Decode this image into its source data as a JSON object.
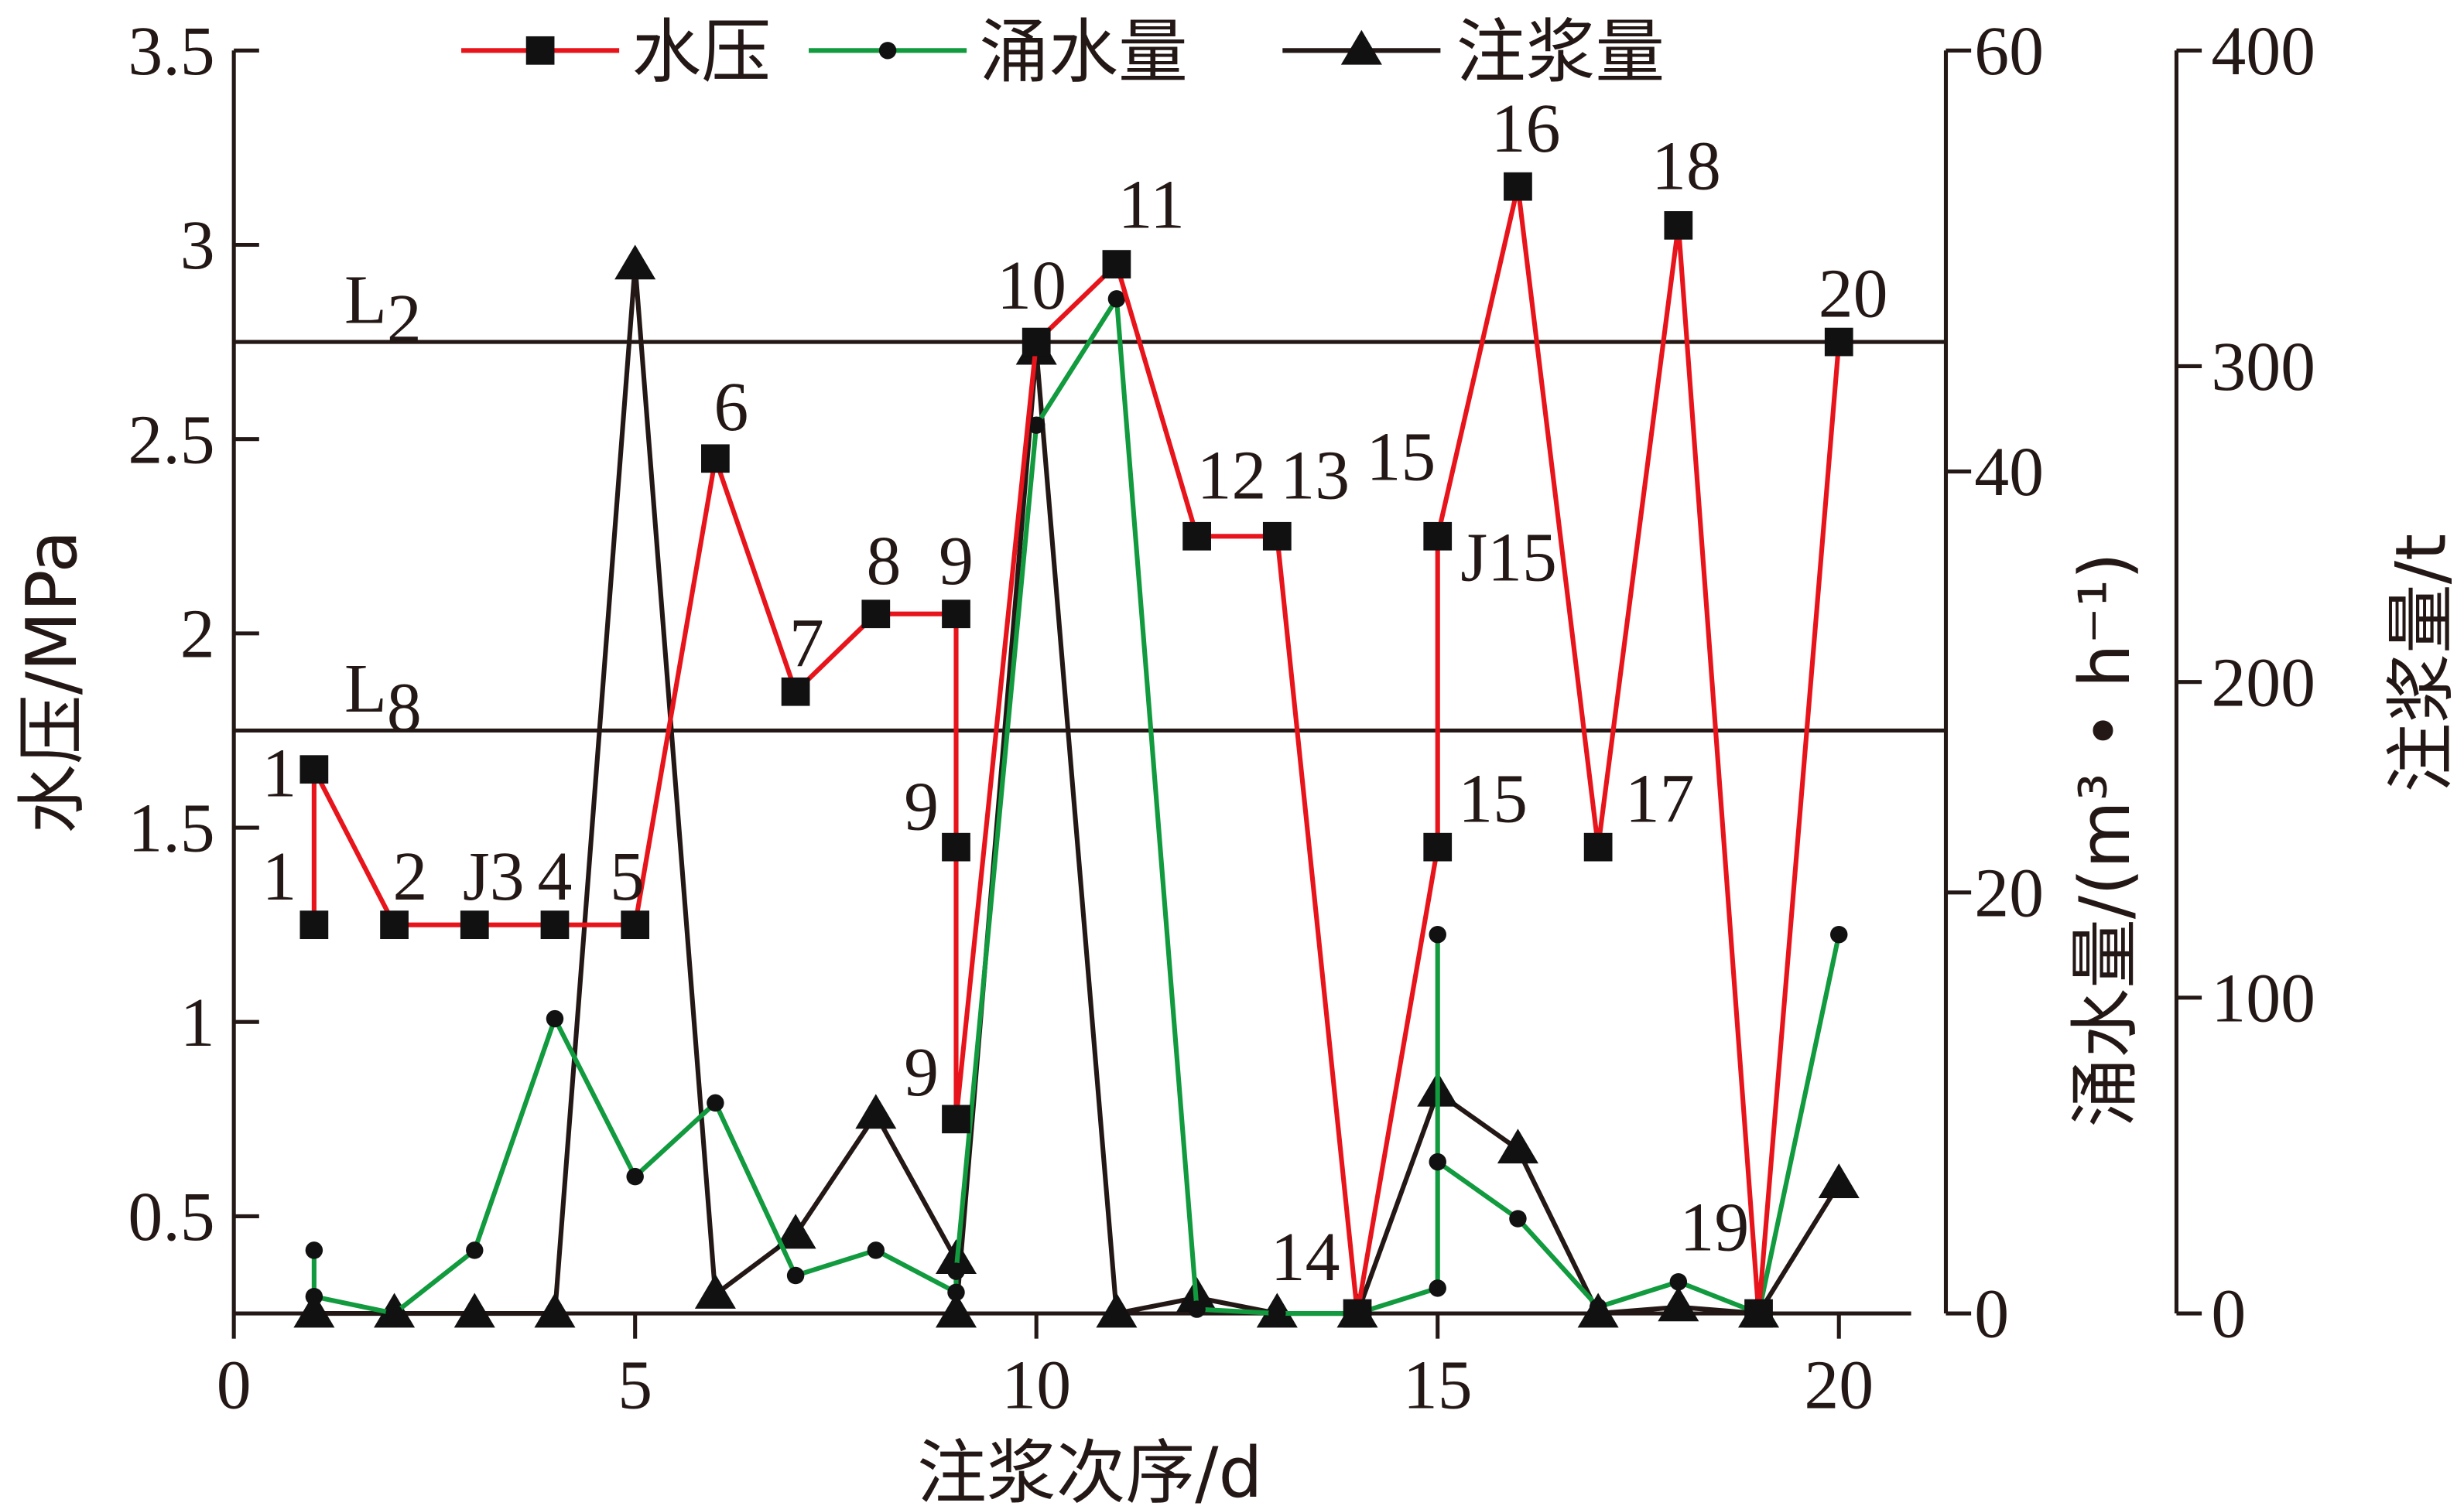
{
  "chart_data": {
    "type": "line",
    "x_label": "注浆次序/d",
    "y_label": "水压/MPa",
    "y2_label": "涌水量/(m³ • h⁻¹)",
    "y3_label": "注浆量/t",
    "xlim": [
      0,
      20.9
    ],
    "xticks": [
      0,
      5,
      10,
      15,
      20
    ],
    "ylim": [
      0.25,
      3.5
    ],
    "yticks": [
      0.5,
      1.0,
      1.5,
      2.0,
      2.5,
      3.0,
      3.5
    ],
    "y2lim": [
      0,
      60
    ],
    "y2ticks": [
      0,
      20,
      40,
      60
    ],
    "y3lim": [
      0,
      400
    ],
    "y3ticks": [
      0,
      100,
      200,
      300,
      400
    ],
    "reference_lines": [
      {
        "label": "L",
        "subscript": "2",
        "value": 2.75
      },
      {
        "label": "L",
        "subscript": "8",
        "value": 1.75
      }
    ],
    "series": [
      {
        "name": "水压",
        "color": "#e8141b",
        "marker": "square",
        "axis": "y",
        "x": [
          1,
          1,
          2,
          3,
          4,
          5,
          6,
          7,
          8,
          9,
          9,
          9,
          10,
          11,
          12,
          13,
          14,
          15,
          15,
          16,
          17,
          18,
          19,
          20
        ],
        "values": [
          1.25,
          1.65,
          1.25,
          1.25,
          1.25,
          1.25,
          2.45,
          1.85,
          2.05,
          2.05,
          1.45,
          0.75,
          2.75,
          2.95,
          2.25,
          2.25,
          0.25,
          1.45,
          2.25,
          3.15,
          1.45,
          3.05,
          0.25,
          2.75
        ],
        "point_labels": [
          "1",
          "1",
          "2",
          "J3",
          "4",
          "5",
          "6",
          "7",
          "8",
          "9",
          "9",
          "9",
          "10",
          "11",
          "12",
          "13",
          "14",
          "15",
          "J15",
          "16",
          "17",
          "18",
          "19",
          "20"
        ]
      },
      {
        "name": "涌水量",
        "color": "#119a3e",
        "marker": "circle",
        "axis": "y2",
        "x": [
          1,
          1,
          2,
          3,
          4,
          5,
          6,
          7,
          8,
          9,
          9,
          10,
          11,
          12,
          13,
          14,
          15,
          15,
          15,
          16,
          17,
          18,
          19,
          20
        ],
        "values": [
          3,
          0.8,
          0,
          3,
          14,
          6.5,
          10,
          1.8,
          3,
          1,
          2,
          42.2,
          48.2,
          0.2,
          0,
          0,
          1.2,
          18,
          7.2,
          4.5,
          0.3,
          1.5,
          0,
          18
        ]
      },
      {
        "name": "注浆量",
        "color": "#231815",
        "marker": "triangle",
        "axis": "y3",
        "x": [
          1,
          2,
          3,
          4,
          5,
          6,
          7,
          8,
          9,
          9,
          10,
          11,
          12,
          13,
          14,
          15,
          16,
          17,
          18,
          19,
          20
        ],
        "values": [
          0,
          0,
          0,
          0,
          332,
          6,
          25,
          63,
          17,
          0,
          305,
          0,
          5,
          0,
          0,
          70,
          52,
          0,
          2,
          0,
          41
        ]
      }
    ],
    "annotations": [
      "15"
    ]
  }
}
